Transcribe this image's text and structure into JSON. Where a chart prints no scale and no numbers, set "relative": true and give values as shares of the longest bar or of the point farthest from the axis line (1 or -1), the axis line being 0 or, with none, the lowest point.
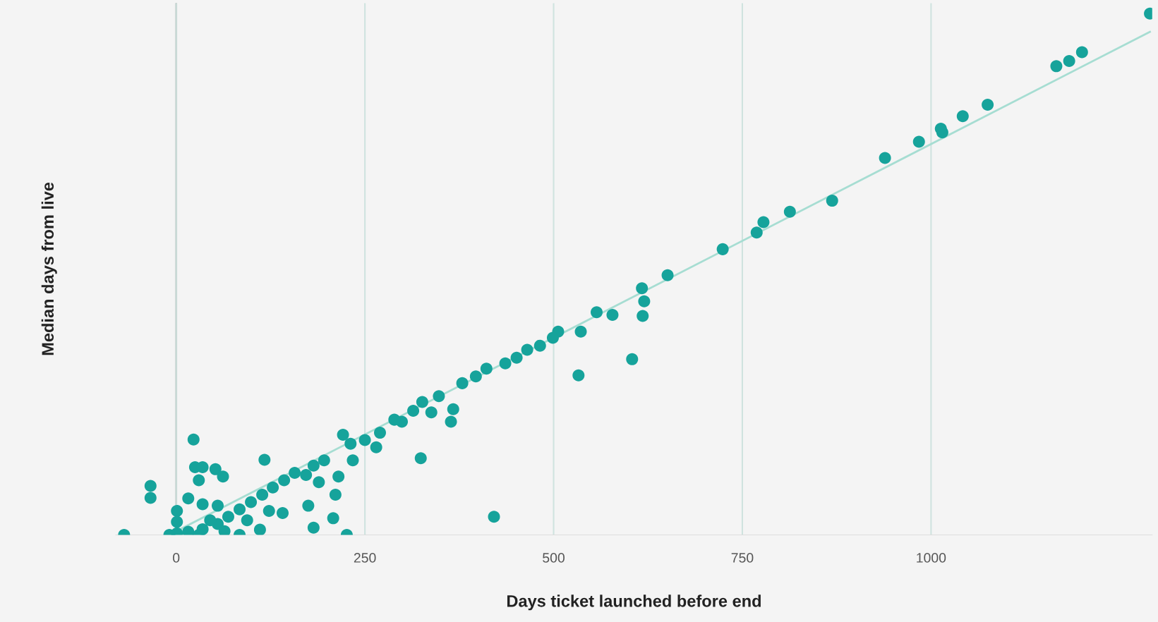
{
  "chart_data": {
    "type": "scatter",
    "xlabel": "Days ticket launched before end",
    "ylabel": "Median days from live",
    "relative": true,
    "xlim": [
      -80,
      1293
    ],
    "xticks": [
      0,
      250,
      500,
      750,
      1000
    ],
    "grid": "x",
    "ref_lines": [
      {
        "axis": "x",
        "value": 0,
        "color": "#888888"
      }
    ],
    "series": [
      {
        "color": "#16a39b",
        "marker": "circle",
        "x": [
          1290,
          1200,
          1183,
          1166,
          1075,
          1042,
          1015,
          1013,
          984,
          939,
          869,
          813,
          778,
          769,
          724,
          651,
          620,
          617,
          618,
          604,
          578,
          557,
          536,
          533,
          506,
          499,
          482,
          465,
          451,
          436,
          421,
          411,
          397,
          379,
          367,
          364,
          348,
          338,
          326,
          314,
          324,
          299,
          289,
          270,
          265,
          250,
          231,
          221,
          234,
          215,
          211,
          208,
          226,
          196,
          182,
          172,
          189,
          175,
          182,
          157,
          143,
          128,
          114,
          117,
          99,
          84,
          69,
          55,
          35,
          16,
          1,
          23,
          25,
          35,
          52,
          30,
          62,
          16,
          35,
          1,
          1,
          -34,
          -34,
          -69,
          -9,
          55,
          84,
          111,
          141,
          123,
          94,
          64,
          30,
          45
        ],
        "values": [
          1.0,
          0.926,
          0.909,
          0.899,
          0.825,
          0.803,
          0.772,
          0.779,
          0.754,
          0.723,
          0.641,
          0.62,
          0.6,
          0.58,
          0.548,
          0.498,
          0.448,
          0.473,
          0.42,
          0.337,
          0.422,
          0.427,
          0.39,
          0.306,
          0.39,
          0.378,
          0.363,
          0.355,
          0.34,
          0.329,
          0.035,
          0.319,
          0.304,
          0.291,
          0.241,
          0.217,
          0.266,
          0.235,
          0.255,
          0.238,
          0.147,
          0.217,
          0.221,
          0.196,
          0.168,
          0.182,
          0.175,
          0.192,
          0.143,
          0.112,
          0.077,
          0.032,
          0.0,
          0.143,
          0.133,
          0.115,
          0.101,
          0.056,
          0.014,
          0.119,
          0.105,
          0.091,
          0.077,
          0.144,
          0.063,
          0.049,
          0.035,
          0.021,
          0.011,
          0.006,
          0.003,
          0.183,
          0.13,
          0.13,
          0.126,
          0.105,
          0.112,
          0.07,
          0.059,
          0.046,
          0.025,
          0.094,
          0.071,
          0.0,
          0.0,
          0.056,
          0.0,
          0.01,
          0.042,
          0.046,
          0.028,
          0.007,
          0.0,
          0.028
        ]
      },
      {
        "type": "line",
        "color": "#a6ddd2",
        "x": [
          0,
          1290
        ],
        "values": [
          0.007,
          0.965
        ]
      }
    ]
  }
}
